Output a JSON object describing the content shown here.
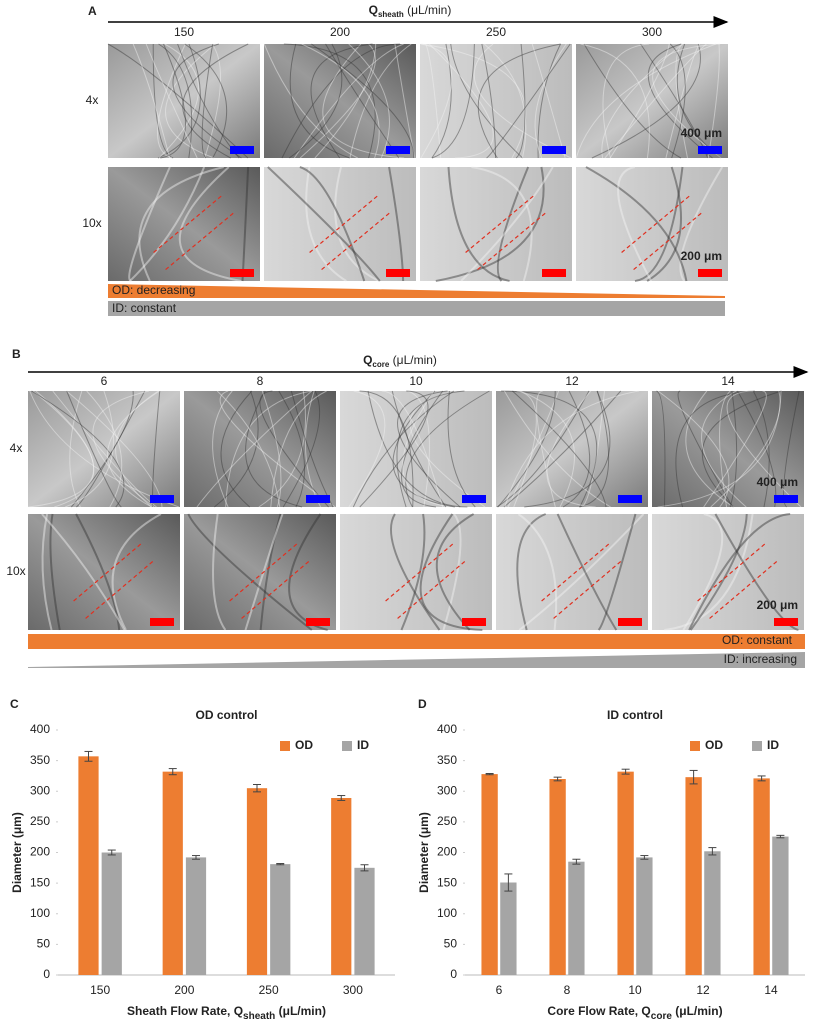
{
  "panel_a": {
    "label": "A",
    "axis_title": "Q",
    "axis_sub": "sheath",
    "axis_unit": " (μL/min)",
    "columns": [
      "150",
      "200",
      "250",
      "300"
    ],
    "rows": [
      "4x",
      "10x"
    ],
    "scale_4x": "400 μm",
    "scale_10x": "200 μm",
    "od_bar": "OD: decreasing",
    "id_bar": "ID: constant"
  },
  "panel_b": {
    "label": "B",
    "axis_title": "Q",
    "axis_sub": "core",
    "axis_unit": " (μL/min)",
    "columns": [
      "6",
      "8",
      "10",
      "12",
      "14"
    ],
    "rows": [
      "4x",
      "10x"
    ],
    "scale_4x": "400 μm",
    "scale_10x": "200 μm",
    "od_bar": "OD: constant",
    "id_bar": "ID: increasing"
  },
  "chart_data": [
    {
      "type": "bar",
      "panel_label": "C",
      "title": "OD control",
      "x_label": "Sheath Flow Rate, Q",
      "x_label_sub": "sheath",
      "x_label_unit": " (μL/min)",
      "y_label": "Diameter (μm)",
      "categories": [
        "150",
        "200",
        "250",
        "300"
      ],
      "series": [
        {
          "name": "OD",
          "color": "#ed7d31",
          "values": [
            357,
            332,
            305,
            289
          ],
          "errors": [
            8,
            5,
            6,
            4
          ]
        },
        {
          "name": "ID",
          "color": "#a5a5a5",
          "values": [
            200,
            192,
            181,
            175
          ],
          "errors": [
            4,
            3,
            1,
            5
          ]
        }
      ],
      "ylim": [
        0,
        400
      ],
      "yticks": [
        0,
        50,
        100,
        150,
        200,
        250,
        300,
        350,
        400
      ],
      "grid": false,
      "legend": "top-right"
    },
    {
      "type": "bar",
      "panel_label": "D",
      "title": "ID control",
      "x_label": "Core Flow Rate, Q",
      "x_label_sub": "core",
      "x_label_unit": " (μL/min)",
      "y_label": "Diameter (μm)",
      "categories": [
        "6",
        "8",
        "10",
        "12",
        "14"
      ],
      "series": [
        {
          "name": "OD",
          "color": "#ed7d31",
          "values": [
            328,
            320,
            332,
            323,
            321
          ],
          "errors": [
            1,
            3,
            4,
            11,
            4
          ]
        },
        {
          "name": "ID",
          "color": "#a5a5a5",
          "values": [
            151,
            185,
            192,
            202,
            226
          ],
          "errors": [
            14,
            4,
            3,
            6,
            2
          ]
        }
      ],
      "ylim": [
        0,
        400
      ],
      "yticks": [
        0,
        50,
        100,
        150,
        200,
        250,
        300,
        350,
        400
      ],
      "grid": false,
      "legend": "top-right"
    }
  ]
}
